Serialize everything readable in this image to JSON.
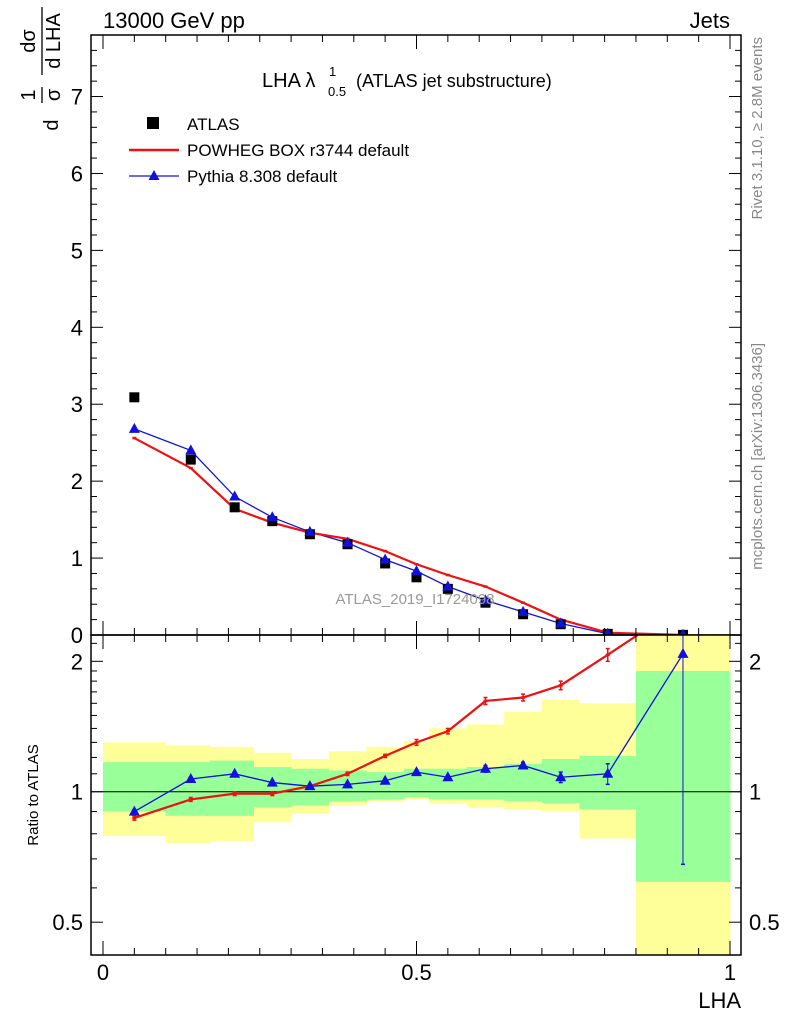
{
  "header": {
    "left": "13000 GeV pp",
    "right": "Jets"
  },
  "side": {
    "top": "Rivet 3.1.10, ≥ 2.8M events",
    "bottom": "mcplots.cern.ch [arXiv:1306.3436]"
  },
  "chart_data": [
    {
      "type": "scatter",
      "title_main": "LHA λ",
      "title_sup": "1",
      "title_sub": "0.5",
      "title_rest": "(ATLAS jet substructure)",
      "ylabel": "1/σ dσ/d LHA",
      "watermark": "ATLAS_2019_I1724098",
      "xlim": [
        0,
        1
      ],
      "ylim": [
        0,
        7.8
      ],
      "y_ticks": [
        "0",
        "1",
        "2",
        "3",
        "4",
        "5",
        "6",
        "7"
      ],
      "x_edges": [
        0.0,
        0.1,
        0.17,
        0.24,
        0.3,
        0.36,
        0.42,
        0.48,
        0.52,
        0.58,
        0.64,
        0.7,
        0.76,
        0.85,
        1.0
      ],
      "x": [
        0.05,
        0.14,
        0.21,
        0.27,
        0.33,
        0.39,
        0.45,
        0.5,
        0.55,
        0.61,
        0.67,
        0.73,
        0.805,
        0.925
      ],
      "series": [
        {
          "name": "ATLAS",
          "color": "#000000",
          "marker": "square",
          "values": [
            3.09,
            2.28,
            1.66,
            1.48,
            1.31,
            1.18,
            0.93,
            0.75,
            0.6,
            0.42,
            0.27,
            0.14,
            0.015,
            0.002
          ]
        },
        {
          "name": "POWHEG BOX r3744 default",
          "color": "#ee1111",
          "marker": "line",
          "values": [
            2.56,
            2.17,
            1.64,
            1.46,
            1.33,
            1.25,
            1.09,
            0.92,
            0.78,
            0.63,
            0.42,
            0.2,
            0.03,
            0.0
          ]
        },
        {
          "name": "Pythia 8.308 default",
          "color": "#1111dd",
          "marker": "triangle",
          "values": [
            2.68,
            2.4,
            1.8,
            1.53,
            1.34,
            1.2,
            0.98,
            0.83,
            0.63,
            0.45,
            0.3,
            0.15,
            0.016,
            0.004
          ]
        }
      ]
    },
    {
      "type": "line",
      "ylabel": "Ratio to ATLAS",
      "xlabel": "LHA",
      "xlim": [
        0,
        1
      ],
      "ylim": [
        0.42,
        2.3
      ],
      "y_ticks": [
        {
          "value": 0.5,
          "label": "0.5"
        },
        {
          "value": 1,
          "label": "1"
        },
        {
          "value": 2,
          "label": "2"
        }
      ],
      "x_ticks": [
        {
          "value": 0,
          "label": "0"
        },
        {
          "value": 0.5,
          "label": "0.5"
        },
        {
          "value": 1,
          "label": "1"
        }
      ],
      "band_inner": [
        [
          0.9,
          1.17
        ],
        [
          0.88,
          1.17
        ],
        [
          0.88,
          1.18
        ],
        [
          0.92,
          1.14
        ],
        [
          0.93,
          1.13
        ],
        [
          0.95,
          1.12
        ],
        [
          0.96,
          1.11
        ],
        [
          0.97,
          1.13
        ],
        [
          0.96,
          1.13
        ],
        [
          0.96,
          1.14
        ],
        [
          0.95,
          1.16
        ],
        [
          0.94,
          1.19
        ],
        [
          0.91,
          1.21
        ],
        [
          0.62,
          1.9
        ]
      ],
      "band_outer": [
        [
          0.79,
          1.3
        ],
        [
          0.76,
          1.28
        ],
        [
          0.77,
          1.27
        ],
        [
          0.85,
          1.23
        ],
        [
          0.89,
          1.19
        ],
        [
          0.93,
          1.24
        ],
        [
          0.95,
          1.27
        ],
        [
          0.96,
          1.31
        ],
        [
          0.94,
          1.4
        ],
        [
          0.92,
          1.43
        ],
        [
          0.91,
          1.53
        ],
        [
          0.9,
          1.63
        ],
        [
          0.78,
          1.6
        ],
        [
          0.36,
          2.3
        ]
      ],
      "series": [
        {
          "name": "POWHEG BOX r3744 default",
          "color": "#ee1111",
          "values": [
            0.87,
            0.96,
            0.99,
            0.99,
            1.03,
            1.1,
            1.21,
            1.3,
            1.38,
            1.62,
            1.65,
            1.76,
            2.07,
            2.7
          ],
          "err": [
            0.01,
            0.01,
            0.01,
            0.01,
            0.01,
            0.01,
            0.01,
            0.02,
            0.02,
            0.03,
            0.03,
            0.04,
            0.07,
            0.0
          ]
        },
        {
          "name": "Pythia 8.308 default",
          "color": "#1111dd",
          "values": [
            0.9,
            1.07,
            1.1,
            1.05,
            1.03,
            1.04,
            1.06,
            1.11,
            1.08,
            1.13,
            1.15,
            1.08,
            1.1,
            2.08
          ],
          "err": [
            0.01,
            0.01,
            0.01,
            0.01,
            0.01,
            0.01,
            0.01,
            0.01,
            0.01,
            0.02,
            0.02,
            0.03,
            0.06,
            1.4
          ]
        }
      ]
    }
  ]
}
